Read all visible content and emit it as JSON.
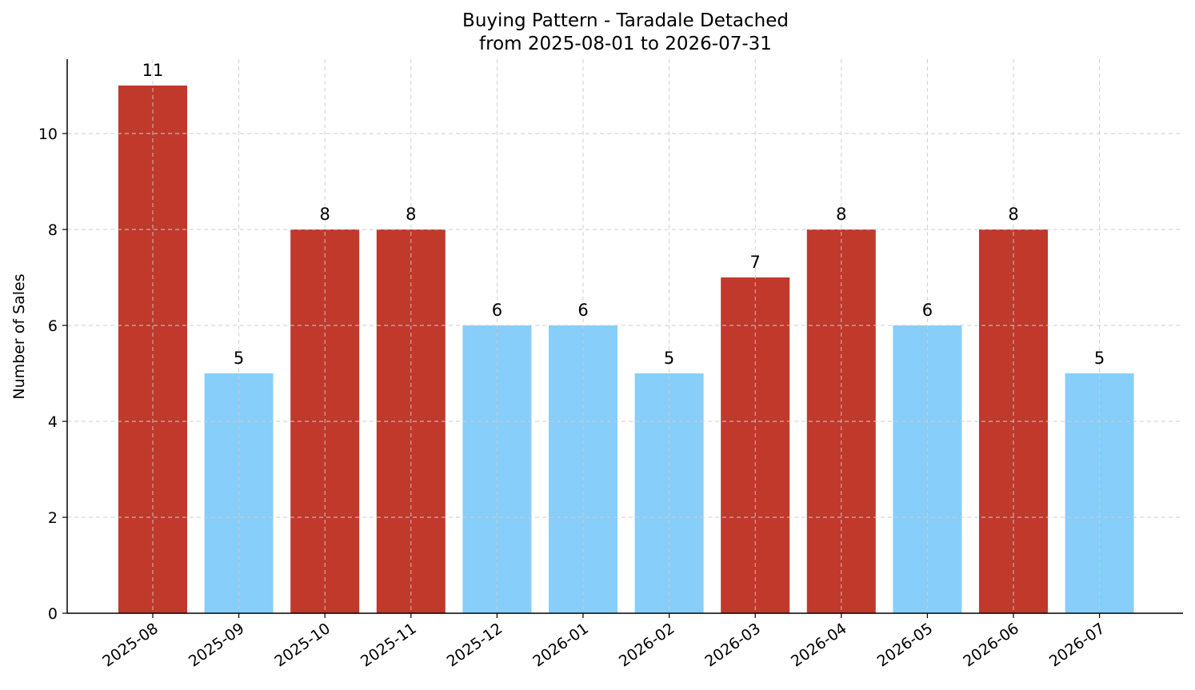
{
  "chart_data": {
    "type": "bar",
    "title": "Buying Pattern - Taradale Detached",
    "subtitle": "from 2025-08-01 to 2026-07-31",
    "xlabel": "",
    "ylabel": "Number of Sales",
    "categories": [
      "2025-08",
      "2025-09",
      "2025-10",
      "2025-11",
      "2025-12",
      "2026-01",
      "2026-02",
      "2026-03",
      "2026-04",
      "2026-05",
      "2026-06",
      "2026-07"
    ],
    "values": [
      11,
      5,
      8,
      8,
      6,
      6,
      5,
      7,
      8,
      6,
      8,
      5
    ],
    "data_labels": [
      "11",
      "5",
      "8",
      "8",
      "6",
      "6",
      "5",
      "7",
      "8",
      "6",
      "8",
      "5"
    ],
    "y_ticks": [
      0,
      2,
      4,
      6,
      8,
      10
    ],
    "ylim": [
      0,
      11.55
    ],
    "grid": true,
    "colors": {
      "high": "#c0392b",
      "low": "#87cefa"
    },
    "bar_color_rule": "values >= 7 use high color, others use low color"
  }
}
